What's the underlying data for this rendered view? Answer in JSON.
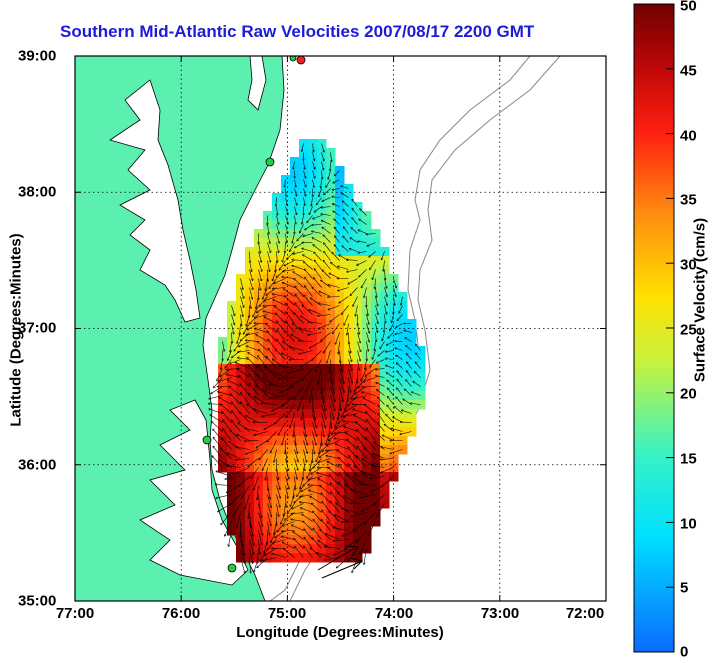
{
  "title": "Southern Mid-Atlantic Raw Velocities 2007/08/17 2200 GMT",
  "x_axis": {
    "label": "Longitude (Degrees:Minutes)",
    "ticks": [
      "77:00",
      "76:00",
      "75:00",
      "74:00",
      "73:00",
      "72:00"
    ],
    "range": [
      -77,
      -72
    ]
  },
  "y_axis": {
    "label": "Latitude (Degrees:Minutes)",
    "ticks": [
      "39:00",
      "38:00",
      "37:00",
      "36:00",
      "35:00"
    ],
    "range": [
      35,
      39
    ]
  },
  "colorbar": {
    "label": "Surface Velocity (cm/s)",
    "ticks": [
      "50",
      "45",
      "40",
      "35",
      "30",
      "25",
      "20",
      "15",
      "10",
      "5",
      "0"
    ],
    "range": [
      0,
      50
    ]
  },
  "grid": true,
  "colors": {
    "land": "#5cf0b0",
    "title": "#1c1cd8",
    "coastline": "#000000",
    "isobath": "#888888",
    "station_green": "#22cc44",
    "station_red": "#ee2222"
  }
}
